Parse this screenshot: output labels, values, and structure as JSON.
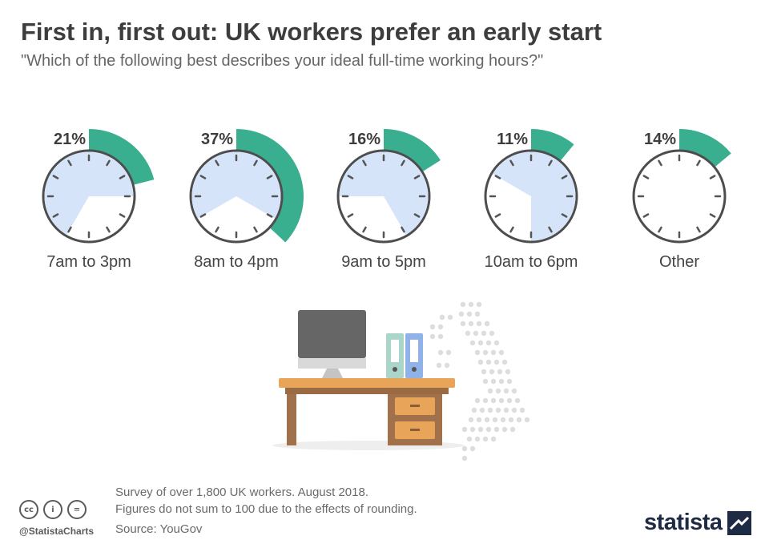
{
  "title": "First in, first out: UK workers prefer an early start",
  "subtitle": "\"Which of the following best describes your ideal full-time working hours?\"",
  "chart_data": {
    "type": "pie",
    "series_description": "",
    "categories": [
      "7am to 3pm",
      "8am to 4pm",
      "9am to 5pm",
      "10am to 6pm",
      "Other"
    ],
    "values": [
      21,
      37,
      16,
      11,
      14
    ],
    "value_labels": [
      "21%",
      "37%",
      "16%",
      "11%",
      "14%"
    ],
    "start_hours": [
      7,
      8,
      9,
      10,
      null
    ],
    "end_hours": [
      15,
      16,
      17,
      18,
      null
    ]
  },
  "colors": {
    "accent": "#3aaf8f",
    "clock_fill": "#d6e4fa",
    "clock_ring": "#4d4d4d",
    "tick": "#555555"
  },
  "footer": {
    "line1": "Survey of over 1,800 UK workers. August 2018.",
    "line2": "Figures do not sum to 100 due to the effects of rounding.",
    "source": "Source: YouGov",
    "handle": "@StatistaCharts",
    "cc_icons": [
      "cc-icon",
      "person-icon",
      "equals-icon"
    ],
    "brand": "statista"
  }
}
